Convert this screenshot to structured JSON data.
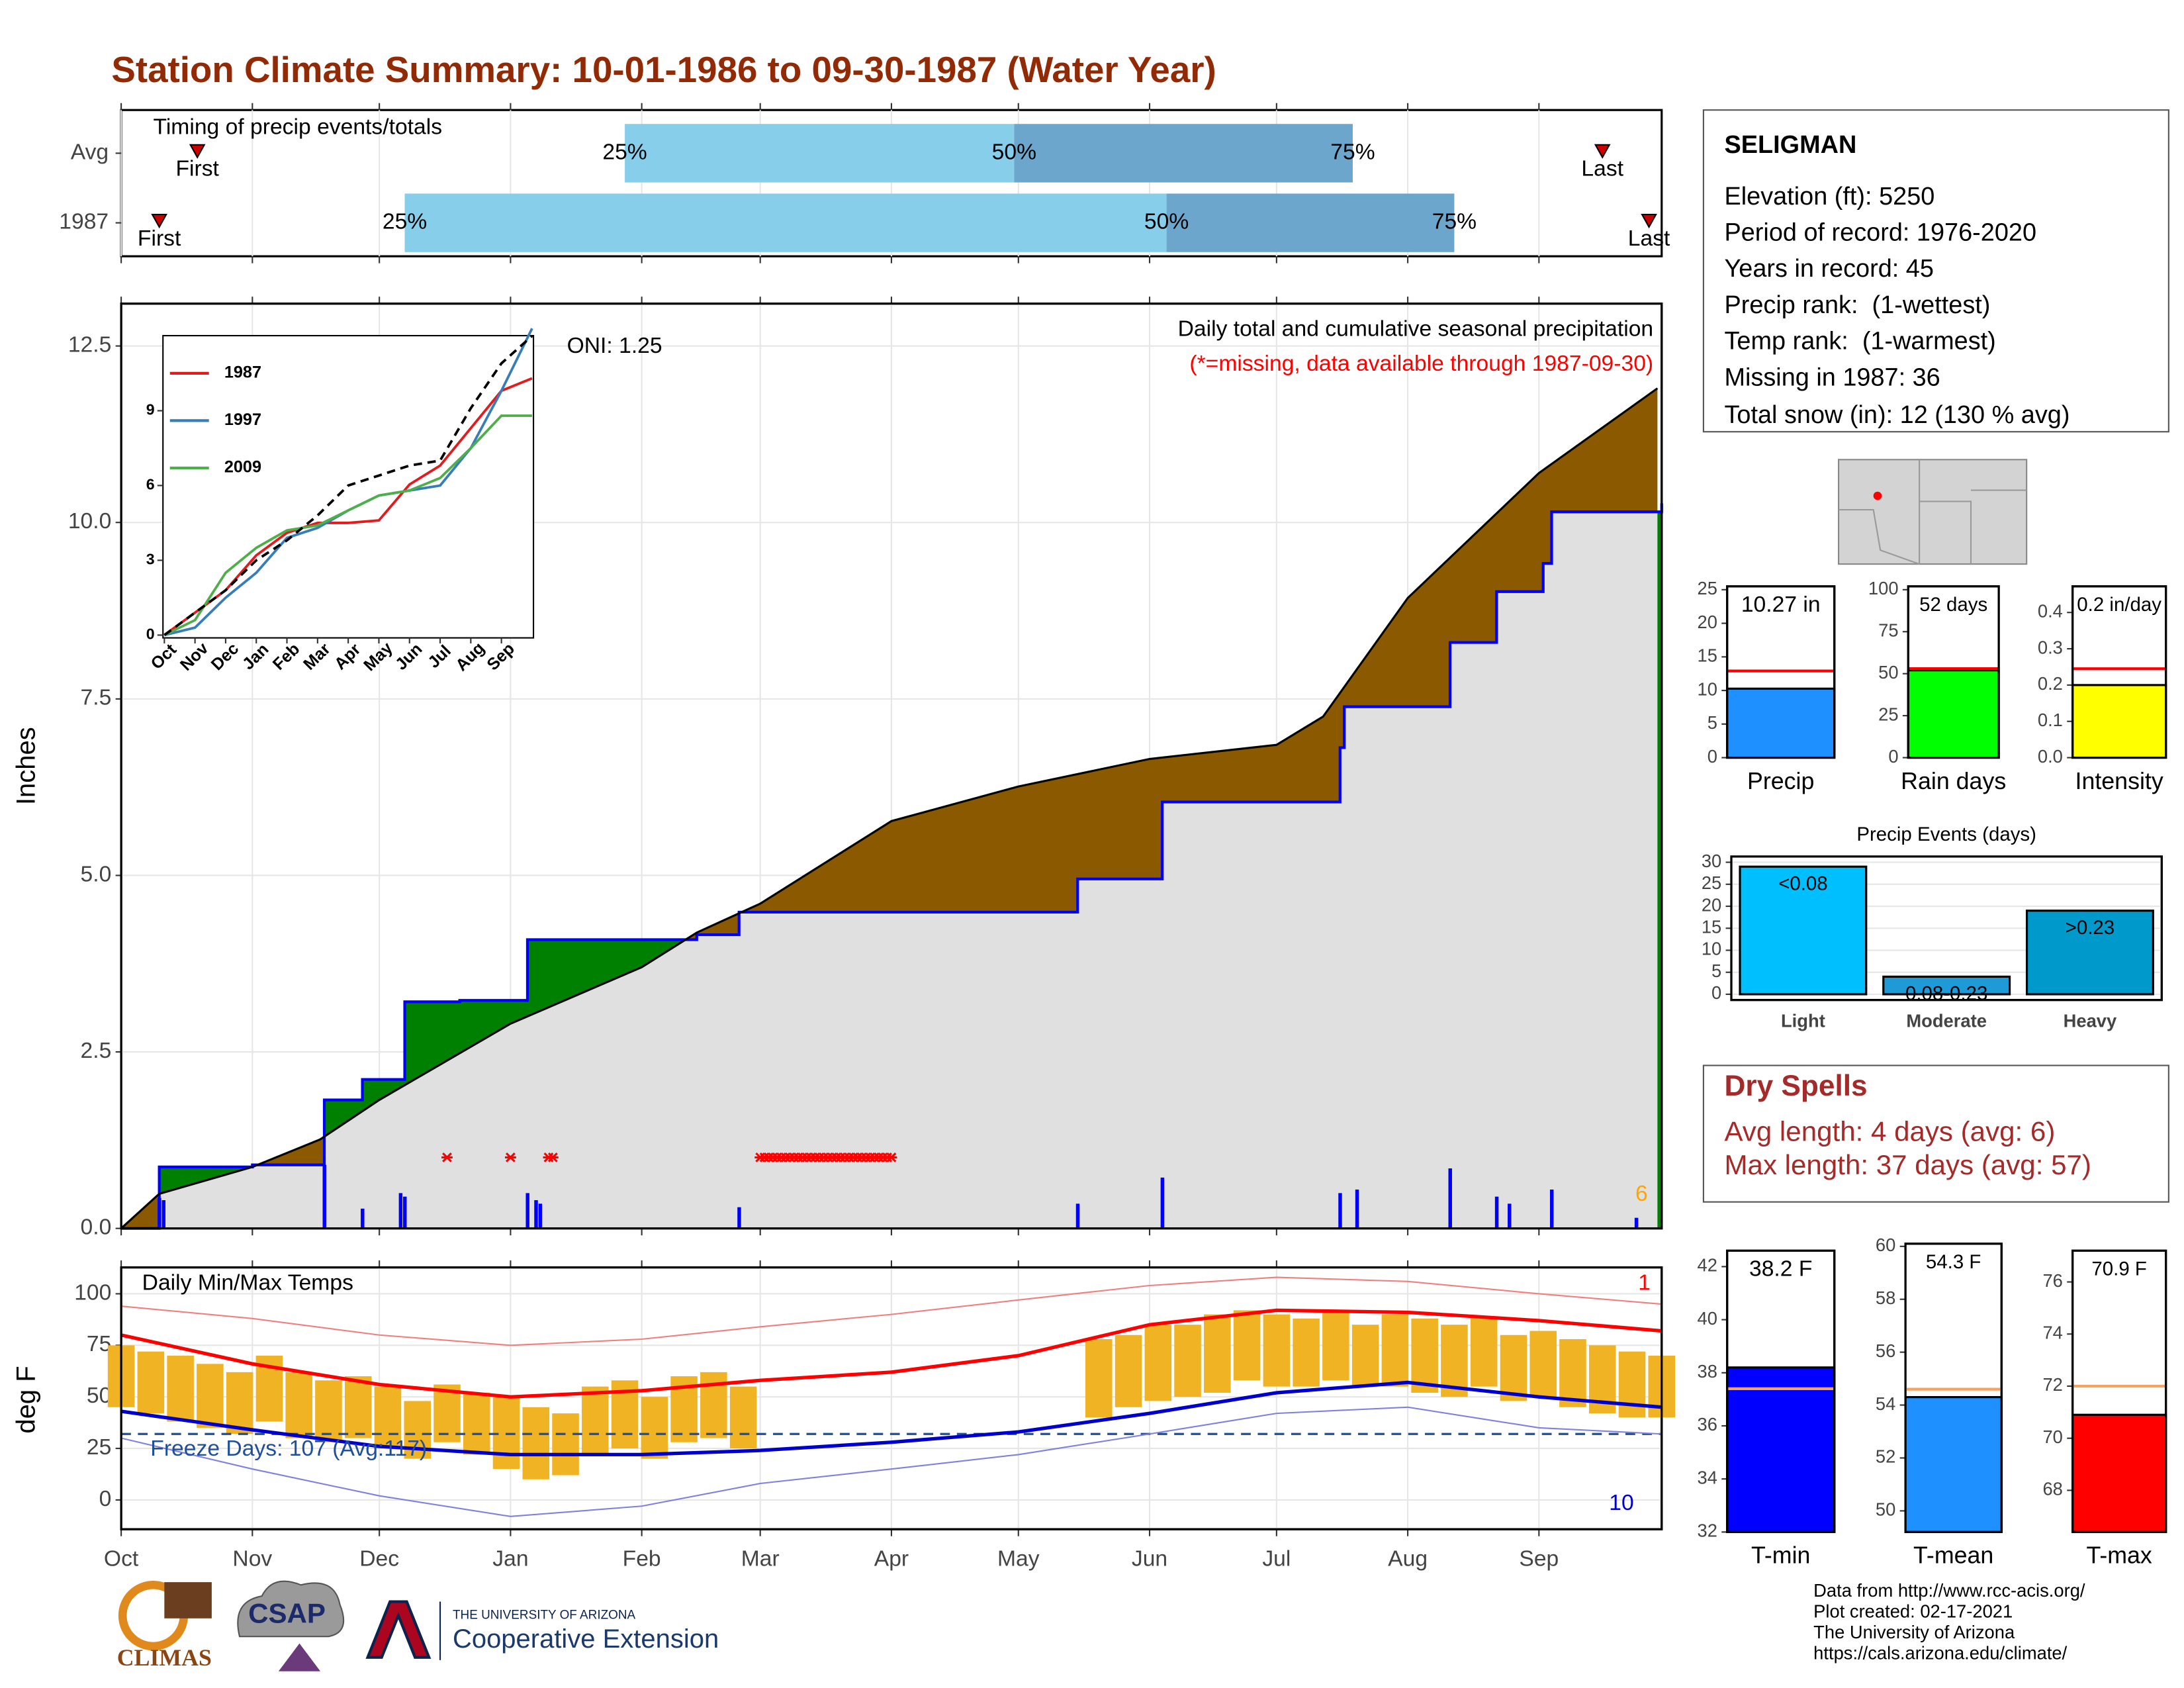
{
  "title": "Station Climate Summary: 10-01-1986 to 09-30-1987 (Water Year)",
  "station": {
    "name": "SELIGMAN",
    "lines": [
      "Elevation (ft): 5250",
      "Period of record: 1976-2020",
      "Years in record: 45",
      "Precip rank:  (1-wettest)",
      "Temp rank:  (1-warmest)",
      "Missing in 1987: 36",
      "Total snow (in): 12 (130 % avg)"
    ]
  },
  "dry_spells": {
    "title": "Dry Spells",
    "lines": [
      "Avg length: 4 days (avg: 6)",
      "Max length: 37 days (avg: 57)"
    ]
  },
  "footer": [
    "Data from http://www.rcc-acis.org/",
    "Plot created: 02-17-2021",
    "The University of Arizona",
    "https://cals.arizona.edu/climate/"
  ],
  "logos": {
    "climas": "CLIMAS",
    "csap": "CSAP",
    "university": "THE UNIVERSITY OF ARIZONA",
    "extension": "Cooperative Extension"
  },
  "chart_data": [
    {
      "type": "timing",
      "title": "Timing of precip events/totals",
      "xlim": [
        0,
        364
      ],
      "xticks": [
        0,
        31,
        61,
        92,
        123,
        151,
        182,
        212,
        243,
        273,
        304,
        335
      ],
      "labels": {
        "first": "First",
        "q25": "25%",
        "q50": "50%",
        "q75": "75%",
        "last": "Last"
      },
      "colors": {
        "lower": "#87ceeb",
        "upper": "#6ca6cd",
        "marker": "#cc0000"
      },
      "rows": [
        {
          "name": "Avg",
          "first": 18,
          "q25": 119,
          "q50": 211,
          "q75": 291,
          "last": 350
        },
        {
          "name": "1987",
          "first": 9,
          "q25": 67,
          "q50": 247,
          "q75": 315,
          "last": 361
        }
      ]
    },
    {
      "type": "area",
      "title": "Daily total and cumulative seasonal precipitation",
      "subtitle": "(*=missing, data available through 1987-09-30)",
      "annotation": "ONI: 1.25",
      "corner_note": "6",
      "ylabel": "Inches",
      "grid": true,
      "xlim": [
        0,
        364
      ],
      "xticks": [
        0,
        31,
        61,
        92,
        123,
        151,
        182,
        212,
        243,
        273,
        304,
        335
      ],
      "ylim": [
        0,
        13.1
      ],
      "yticks": [
        {
          "value": 0,
          "label": "0.0"
        },
        2.5,
        {
          "value": 5,
          "label": "5.0"
        },
        7.5,
        {
          "value": 10,
          "label": "10.0"
        },
        12.5
      ],
      "fill_colors": {
        "above": "#8b5a00",
        "below": "#008000",
        "base": "#e0e0e0"
      },
      "series": [
        {
          "color": "#0000ff",
          "x": [
            0,
            9,
            31,
            48,
            57,
            67,
            80,
            96,
            136,
            146,
            226,
            246,
            288,
            289,
            314,
            325,
            336,
            338,
            364
          ],
          "values": [
            0,
            0.87,
            0.9,
            1.82,
            2.11,
            3.21,
            3.23,
            4.09,
            4.16,
            4.48,
            4.95,
            6.04,
            6.81,
            7.39,
            8.3,
            9.02,
            9.42,
            10.15,
            10.27
          ]
        },
        {
          "color": "#000000",
          "x": [
            0,
            9,
            31,
            47,
            61,
            92,
            123,
            136,
            151,
            182,
            212,
            243,
            273,
            284,
            304,
            335,
            363
          ],
          "values": [
            0,
            0.49,
            0.87,
            1.26,
            1.82,
            2.9,
            3.7,
            4.19,
            4.6,
            5.77,
            6.26,
            6.65,
            6.85,
            7.25,
            8.93,
            10.7,
            11.9
          ]
        }
      ],
      "daily": {
        "color": "#0000ff",
        "x": [
          9,
          10,
          48,
          57,
          66,
          67,
          96,
          98,
          99,
          146,
          226,
          246,
          288,
          292,
          314,
          325,
          328,
          338,
          358
        ],
        "values": [
          0.43,
          0.4,
          0.9,
          0.28,
          0.5,
          0.45,
          0.5,
          0.4,
          0.35,
          0.3,
          0.35,
          0.72,
          0.5,
          0.55,
          0.85,
          0.45,
          0.35,
          0.55,
          0.15
        ]
      },
      "missing_color": "#ff0000",
      "missing_x": [
        77,
        92,
        101,
        102,
        151,
        152,
        153,
        154,
        155,
        156,
        157,
        158,
        159,
        160,
        161,
        162,
        163,
        164,
        165,
        166,
        167,
        168,
        169,
        170,
        171,
        172,
        173,
        174,
        175,
        176,
        177,
        178,
        179,
        180,
        181,
        182
      ]
    },
    {
      "type": "line",
      "legend": "top-left",
      "xlim": [
        0,
        12
      ],
      "ylim": [
        0,
        11.9
      ],
      "yticks": [
        0,
        3,
        6,
        9
      ],
      "xticks": [
        {
          "value": 0,
          "label": "Oct"
        },
        {
          "value": 1,
          "label": "Nov"
        },
        {
          "value": 2,
          "label": "Dec"
        },
        {
          "value": 3,
          "label": "Jan"
        },
        {
          "value": 4,
          "label": "Feb"
        },
        {
          "value": 5,
          "label": "Mar"
        },
        {
          "value": 6,
          "label": "Apr"
        },
        {
          "value": 7,
          "label": "May"
        },
        {
          "value": 8,
          "label": "Jun"
        },
        {
          "value": 9,
          "label": "Jul"
        },
        {
          "value": 10,
          "label": "Aug"
        },
        {
          "value": 11,
          "label": "Sep"
        }
      ],
      "x": [
        0,
        1,
        2,
        3,
        4,
        5,
        6,
        7,
        8,
        9,
        10,
        11,
        12
      ],
      "series": [
        {
          "name": "1987",
          "color": "#e41a1c",
          "values": [
            0,
            0.9,
            1.8,
            3.2,
            4.1,
            4.5,
            4.5,
            4.6,
            6.04,
            6.8,
            8.3,
            9.8,
            10.3
          ]
        },
        {
          "name": "1997",
          "color": "#377eb8",
          "values": [
            0,
            0.3,
            1.5,
            2.5,
            3.9,
            4.3,
            5,
            5.6,
            5.8,
            6,
            7.5,
            9.8,
            12.3
          ]
        },
        {
          "name": "2009",
          "color": "#4daf4a",
          "values": [
            0,
            0.6,
            2.5,
            3.5,
            4.2,
            4.4,
            5,
            5.6,
            5.8,
            6.3,
            7.5,
            8.8,
            8.8
          ]
        },
        {
          "color": "#000000",
          "dashed": true,
          "values": [
            0,
            0.9,
            1.8,
            3,
            3.8,
            4.8,
            6,
            6.4,
            6.8,
            7,
            9.1,
            10.9,
            12
          ]
        }
      ]
    },
    {
      "type": "temps",
      "title": "Daily Min/Max Temps",
      "annotation": "Freeze Days: 107 (Avg:117)",
      "max_note": "1",
      "min_note": "10",
      "ylabel": "deg F",
      "grid": true,
      "xlim": [
        0,
        364
      ],
      "xticks": [
        {
          "value": 0,
          "label": "Oct"
        },
        {
          "value": 31,
          "label": "Nov"
        },
        {
          "value": 61,
          "label": "Dec"
        },
        {
          "value": 92,
          "label": "Jan"
        },
        {
          "value": 123,
          "label": "Feb"
        },
        {
          "value": 151,
          "label": "Mar"
        },
        {
          "value": 182,
          "label": "Apr"
        },
        {
          "value": 212,
          "label": "May"
        },
        {
          "value": 243,
          "label": "Jun"
        },
        {
          "value": 273,
          "label": "Jul"
        },
        {
          "value": 304,
          "label": "Aug"
        },
        {
          "value": 335,
          "label": "Sep"
        }
      ],
      "ylim": [
        -14.2,
        112.8
      ],
      "yticks": [
        0,
        25,
        50,
        75,
        100
      ],
      "freeze": 32,
      "freeze_color": "#1f4e9a",
      "bars": {
        "color": "#f0b323",
        "x": [
          0,
          7,
          14,
          21,
          28,
          35,
          42,
          49,
          56,
          63,
          70,
          77,
          84,
          91,
          98,
          105,
          112,
          119,
          126,
          133,
          140,
          147,
          154,
          161,
          168,
          175,
          182,
          189,
          196,
          203,
          210,
          217,
          224,
          231,
          238,
          245,
          252,
          259,
          266,
          273,
          280,
          287,
          294,
          301,
          308,
          315,
          322,
          329,
          336,
          343,
          350,
          357,
          364
        ],
        "max": [
          75,
          72,
          70,
          66,
          62,
          70,
          62,
          58,
          60,
          55,
          48,
          56,
          52,
          50,
          45,
          42,
          55,
          58,
          50,
          60,
          62,
          55,
          null,
          null,
          null,
          null,
          null,
          null,
          null,
          null,
          null,
          null,
          null,
          78,
          80,
          85,
          85,
          90,
          92,
          90,
          88,
          92,
          85,
          90,
          88,
          85,
          88,
          80,
          82,
          78,
          75,
          72,
          70
        ],
        "min": [
          45,
          42,
          38,
          35,
          32,
          38,
          30,
          28,
          30,
          25,
          20,
          28,
          22,
          15,
          10,
          12,
          22,
          25,
          20,
          28,
          30,
          25,
          null,
          null,
          null,
          null,
          null,
          null,
          null,
          null,
          null,
          null,
          null,
          40,
          45,
          48,
          50,
          52,
          58,
          55,
          55,
          58,
          55,
          55,
          52,
          50,
          55,
          48,
          50,
          45,
          42,
          40,
          40
        ]
      },
      "x": [
        0,
        31,
        61,
        92,
        123,
        151,
        182,
        212,
        243,
        273,
        304,
        335,
        364
      ],
      "series": [
        {
          "color": "#f08080",
          "width": 1,
          "values": [
            94,
            88,
            80,
            75,
            78,
            84,
            90,
            97,
            104,
            108,
            106,
            100,
            95
          ]
        },
        {
          "color": "#8080e0",
          "width": 1,
          "values": [
            30,
            15,
            2,
            -8,
            -3,
            8,
            15,
            22,
            32,
            42,
            45,
            35,
            32
          ]
        },
        {
          "color": "#ff0000",
          "width": 2.5,
          "values": [
            80,
            66,
            56,
            50,
            53,
            58,
            62,
            70,
            85,
            92,
            91,
            87,
            82
          ]
        },
        {
          "color": "#0000cc",
          "width": 2.5,
          "values": [
            43,
            34,
            26,
            22,
            22,
            24,
            28,
            33,
            42,
            52,
            57,
            50,
            45
          ]
        }
      ]
    },
    {
      "type": "bar",
      "categories": [
        "Precip"
      ],
      "values": [
        10.27
      ],
      "value_labels": [
        "10.27 in"
      ],
      "average": 12.9,
      "average_color": "#ff0000",
      "color": "#1e90ff",
      "ylim": [
        0,
        25.5
      ],
      "yticks": [
        0,
        5,
        10,
        15,
        20,
        25
      ]
    },
    {
      "type": "bar",
      "categories": [
        "Rain days"
      ],
      "values": [
        52
      ],
      "value_labels": [
        "52 days"
      ],
      "average": 53,
      "average_color": "#ff0000",
      "color": "#00ff00",
      "ylim": [
        0,
        102
      ],
      "yticks": [
        0,
        25,
        50,
        75,
        100
      ]
    },
    {
      "type": "bar",
      "categories": [
        "Intensity"
      ],
      "values": [
        0.2
      ],
      "value_labels": [
        "0.2 in/day"
      ],
      "average": 0.245,
      "average_color": "#ff0000",
      "color": "#ffff00",
      "ylim": [
        0,
        0.472
      ],
      "yticks": [
        {
          "value": 0,
          "label": "0.0"
        },
        0.1,
        0.2,
        0.3,
        0.4
      ]
    },
    {
      "type": "bar",
      "title": "Precip Events (days)",
      "grid": true,
      "categories": [
        "Light",
        "Moderate",
        "Heavy"
      ],
      "values": [
        29,
        4,
        19
      ],
      "bin_labels": [
        "<0.08",
        "0.08-0.23",
        ">0.23"
      ],
      "colors": [
        "#00bfff",
        "#1e9ad6",
        "#0099cc"
      ],
      "ylim": [
        -1.3,
        31.3
      ],
      "yticks": [
        0,
        5,
        10,
        15,
        20,
        25,
        30
      ]
    },
    {
      "type": "bar",
      "categories": [
        "T-min"
      ],
      "values": [
        38.2
      ],
      "value_labels": [
        "38.2 F"
      ],
      "average": 37.4,
      "average_color": "#f4a460",
      "color": "#0000ff",
      "ylim": [
        32,
        42.6
      ],
      "yticks": [
        32,
        34,
        36,
        38,
        40,
        42
      ]
    },
    {
      "type": "bar",
      "categories": [
        "T-mean"
      ],
      "values": [
        54.3
      ],
      "value_labels": [
        "54.3 F"
      ],
      "average": 54.6,
      "average_color": "#f4a460",
      "color": "#1e90ff",
      "ylim": [
        49.2,
        60.1
      ],
      "yticks": [
        50,
        52,
        54,
        56,
        58,
        60
      ]
    },
    {
      "type": "bar",
      "categories": [
        "T-max"
      ],
      "values": [
        70.9
      ],
      "value_labels": [
        "70.9 F"
      ],
      "average": 72,
      "average_color": "#f4a460",
      "color": "#ff0000",
      "ylim": [
        66.4,
        77.2
      ],
      "yticks": [
        68,
        70,
        72,
        74,
        76
      ]
    }
  ]
}
